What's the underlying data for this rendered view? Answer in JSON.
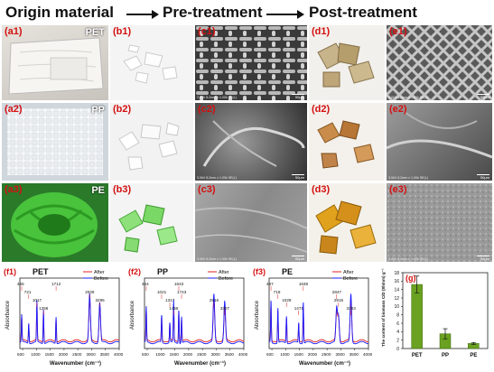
{
  "headers": {
    "origin": "Origin material",
    "pre": "Pre-treatment",
    "post": "Post-treatment"
  },
  "panels": {
    "a1": "(a1)",
    "a2": "(a2)",
    "a3": "(a3)",
    "b1": "(b1)",
    "b2": "(b2)",
    "b3": "(b3)",
    "c1": "(c1)",
    "c2": "(c2)",
    "c3": "(c3)",
    "d1": "(d1)",
    "d2": "(d2)",
    "d3": "(d3)",
    "e1": "(e1)",
    "e2": "(e2)",
    "e3": "(e3)"
  },
  "materials": {
    "pet": "PET",
    "pp": "PP",
    "pe": "PE"
  },
  "sem": {
    "info": "3.0kV 8.2mm x 1.00k SE(L)",
    "scale": "50μm"
  },
  "colors": {
    "after": "#e02020",
    "before": "#1a1aff",
    "bar": "#6aa121",
    "label": "#d41010"
  },
  "chart_data": [
    {
      "type": "line",
      "panel": "(f1)",
      "title": "PET",
      "xlabel": "Wavenumber (cm⁻¹)",
      "ylabel": "Absorbance",
      "xlim": [
        4000,
        400
      ],
      "xticks": [
        500,
        1000,
        1500,
        2000,
        2500,
        3000,
        3500,
        4000
      ],
      "series": [
        {
          "name": "After"
        },
        {
          "name": "Before"
        }
      ],
      "peaks": [
        {
          "x": 465,
          "label": "465"
        },
        {
          "x": 721,
          "label": "721"
        },
        {
          "x": 1017,
          "label": "1017"
        },
        {
          "x": 1256,
          "label": "1256"
        },
        {
          "x": 1712,
          "label": "1712"
        },
        {
          "x": 2929,
          "label": "2929"
        },
        {
          "x": 3295,
          "label": "3295"
        }
      ]
    },
    {
      "type": "line",
      "panel": "(f2)",
      "title": "PP",
      "xlabel": "Wavenumber (cm⁻¹)",
      "ylabel": "Absorbance",
      "xlim": [
        4000,
        400
      ],
      "xticks": [
        500,
        1000,
        1500,
        2000,
        2500,
        3000,
        3500,
        4000
      ],
      "series": [
        {
          "name": "After"
        },
        {
          "name": "Before"
        }
      ],
      "peaks": [
        {
          "x": 464,
          "label": "464"
        },
        {
          "x": 1021,
          "label": "1021"
        },
        {
          "x": 1317,
          "label": "1317"
        },
        {
          "x": 1456,
          "label": "1456"
        },
        {
          "x": 1643,
          "label": "1643"
        },
        {
          "x": 1743,
          "label": "1743"
        },
        {
          "x": 2916,
          "label": "2916"
        },
        {
          "x": 3307,
          "label": "3307"
        }
      ]
    },
    {
      "type": "line",
      "panel": "(f3)",
      "title": "PE",
      "xlabel": "Wavenumber (cm⁻¹)",
      "ylabel": "Absorbance",
      "xlim": [
        4000,
        400
      ],
      "xticks": [
        500,
        1000,
        1500,
        2000,
        2500,
        3000,
        3500,
        4000
      ],
      "series": [
        {
          "name": "After"
        },
        {
          "name": "Before"
        }
      ],
      "peaks": [
        {
          "x": 467,
          "label": "467"
        },
        {
          "x": 718,
          "label": "718"
        },
        {
          "x": 1029,
          "label": "1029"
        },
        {
          "x": 1471,
          "label": "1471"
        },
        {
          "x": 1638,
          "label": "1638"
        },
        {
          "x": 2847,
          "label": "2847"
        },
        {
          "x": 2915,
          "label": "2915"
        },
        {
          "x": 3363,
          "label": "3363"
        }
      ]
    },
    {
      "type": "bar",
      "panel": "(g)",
      "categories": [
        "PET",
        "PP",
        "PE"
      ],
      "values": [
        15.2,
        3.5,
        1.2
      ],
      "errors": [
        2.0,
        1.2,
        0.2
      ],
      "ylabel": "The content of biomass C/D (8h/nm) g⁻¹",
      "ylim": [
        0,
        18
      ],
      "yticks": [
        0,
        2,
        4,
        6,
        8,
        10,
        12,
        14,
        16,
        18
      ]
    }
  ]
}
